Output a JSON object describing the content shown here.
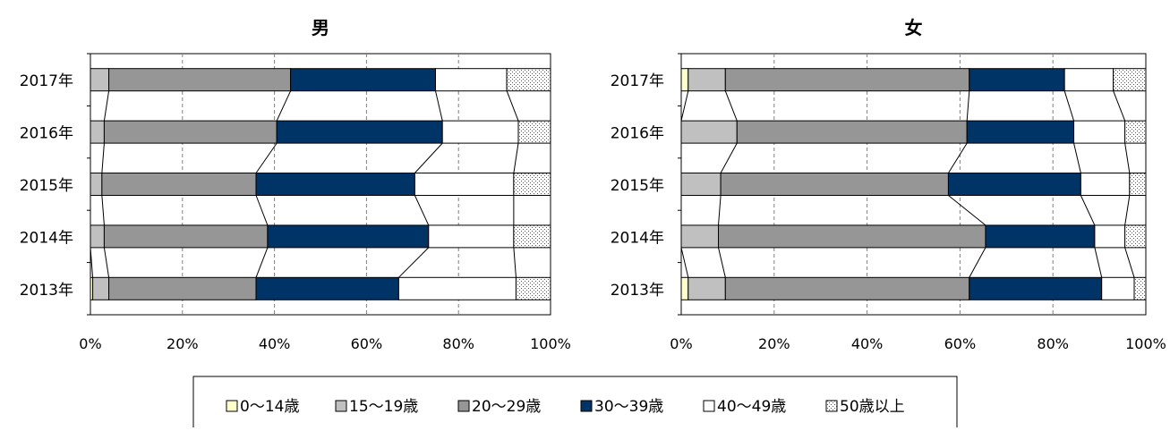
{
  "legend": {
    "items": [
      "0～14歳",
      "15～19歳",
      "20～29歳",
      "30～39歳",
      "40～49歳",
      "50歳以上"
    ]
  },
  "series_styles": [
    {
      "name": "0～14歳",
      "fill": "#ffffcc",
      "pattern": "none"
    },
    {
      "name": "15～19歳",
      "fill": "#c0c0c0",
      "pattern": "none"
    },
    {
      "name": "20～29歳",
      "fill": "#969696",
      "pattern": "none"
    },
    {
      "name": "30～39歳",
      "fill": "#003366",
      "pattern": "none"
    },
    {
      "name": "40～49歳",
      "fill": "#ffffff",
      "pattern": "none"
    },
    {
      "name": "50歳以上",
      "fill": "#ffffff",
      "pattern": "dots"
    }
  ],
  "chart_data": [
    {
      "type": "bar",
      "orientation": "horizontal",
      "stacked": "percent",
      "title": "男",
      "categories": [
        "2017年",
        "2016年",
        "2015年",
        "2014年",
        "2013年"
      ],
      "xlim": [
        0,
        100
      ],
      "xticks": [
        "0%",
        "20%",
        "40%",
        "60%",
        "80%",
        "100%"
      ],
      "grid": "vertical dashed",
      "series_lines": true,
      "series": [
        {
          "name": "0～14歳",
          "values": [
            0.0,
            0.0,
            0.0,
            0.0,
            0.5
          ]
        },
        {
          "name": "15～19歳",
          "values": [
            4.0,
            3.0,
            2.5,
            3.0,
            3.5
          ]
        },
        {
          "name": "20～29歳",
          "values": [
            39.5,
            37.5,
            33.5,
            35.5,
            32.0
          ]
        },
        {
          "name": "30～39歳",
          "values": [
            31.5,
            36.0,
            34.5,
            35.0,
            31.0
          ]
        },
        {
          "name": "40～49歳",
          "values": [
            15.5,
            16.5,
            21.5,
            18.5,
            25.5
          ]
        },
        {
          "name": "50歳以上",
          "values": [
            9.5,
            7.0,
            8.0,
            8.0,
            7.5
          ]
        }
      ]
    },
    {
      "type": "bar",
      "orientation": "horizontal",
      "stacked": "percent",
      "title": "女",
      "categories": [
        "2017年",
        "2016年",
        "2015年",
        "2014年",
        "2013年"
      ],
      "xlim": [
        0,
        100
      ],
      "xticks": [
        "0%",
        "20%",
        "40%",
        "60%",
        "80%",
        "100%"
      ],
      "grid": "vertical dashed",
      "series_lines": true,
      "series": [
        {
          "name": "0～14歳",
          "values": [
            1.5,
            0.0,
            0.0,
            0.0,
            1.5
          ]
        },
        {
          "name": "15～19歳",
          "values": [
            8.0,
            12.0,
            8.5,
            8.0,
            8.0
          ]
        },
        {
          "name": "20～29歳",
          "values": [
            52.5,
            49.5,
            49.0,
            57.5,
            52.5
          ]
        },
        {
          "name": "30～39歳",
          "values": [
            20.5,
            23.0,
            28.5,
            23.5,
            28.5
          ]
        },
        {
          "name": "40～49歳",
          "values": [
            10.5,
            11.0,
            10.5,
            6.5,
            7.0
          ]
        },
        {
          "name": "50歳以上",
          "values": [
            7.0,
            4.5,
            3.5,
            4.5,
            2.5
          ]
        }
      ]
    }
  ]
}
